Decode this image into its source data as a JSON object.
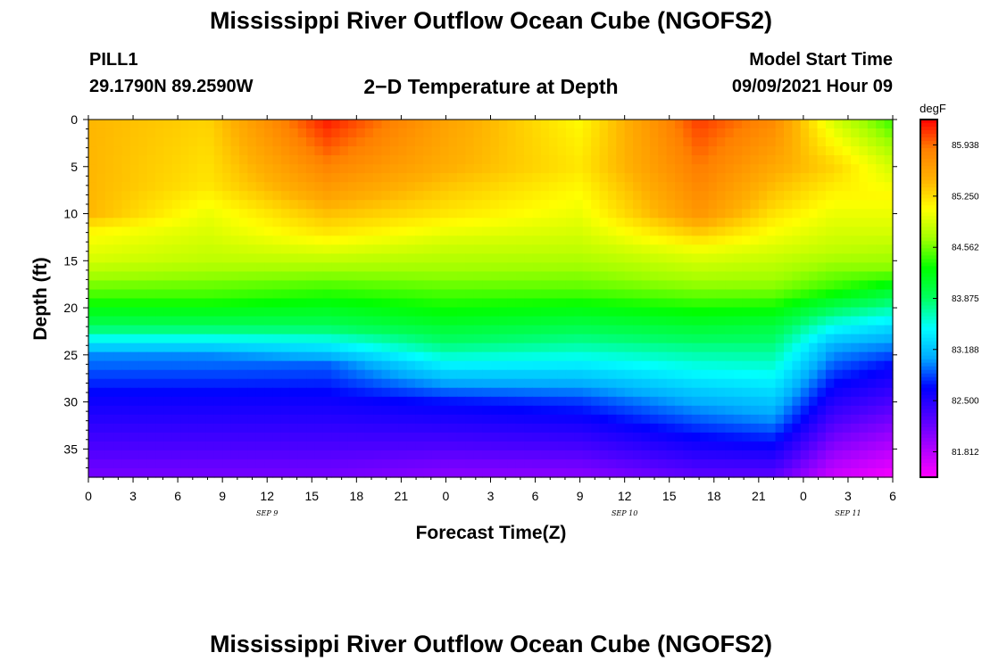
{
  "header": {
    "title": "Mississippi River Outflow Ocean Cube (NGOFS2)",
    "station": "PILL1",
    "coords": "29.1790N  89.2590W",
    "subtitle": "2−D Temperature at Depth",
    "start_label": "Model Start Time",
    "start_time": "09/09/2021 Hour 09"
  },
  "footer": {
    "title": "Mississippi River Outflow Ocean Cube (NGOFS2)"
  },
  "chart_data": {
    "type": "heatmap",
    "title": "2−D Temperature at Depth",
    "xlabel": "Forecast Time(Z)",
    "ylabel": "Depth (ft)",
    "x_ticks": [
      "0",
      "3",
      "6",
      "9",
      "12",
      "15",
      "18",
      "21",
      "0",
      "3",
      "6",
      "9",
      "12",
      "15",
      "18",
      "21",
      "0",
      "3",
      "6"
    ],
    "x_hours": [
      0,
      54
    ],
    "date_labels": [
      {
        "text": "SEP 9",
        "hour": 12
      },
      {
        "text": "SEP 10",
        "hour": 36
      },
      {
        "text": "SEP 11",
        "hour": 51
      }
    ],
    "y_ticks": [
      0,
      5,
      10,
      15,
      20,
      25,
      30,
      35
    ],
    "ylim": [
      0,
      38
    ],
    "colorbar": {
      "unit": "degF",
      "range": [
        81.47,
        86.28
      ],
      "ticks": [
        "85.938",
        "85.250",
        "84.562",
        "83.875",
        "83.188",
        "82.500",
        "81.812"
      ],
      "colors": [
        "#ff00ff",
        "#aa00ff",
        "#5000ff",
        "#0000ff",
        "#00aaff",
        "#00ffff",
        "#00ff60",
        "#00ff00",
        "#a0ff00",
        "#ffff00",
        "#ffb000",
        "#ff8000",
        "#ff0000"
      ]
    },
    "temperature_profiles": [
      {
        "hour": 0,
        "depths": [
          0,
          10,
          12,
          15,
          19,
          22,
          25,
          30,
          38
        ],
        "values": [
          85.45,
          85.45,
          85.1,
          84.9,
          84.4,
          83.9,
          83.0,
          82.6,
          82.1
        ]
      },
      {
        "hour": 8,
        "depths": [
          0,
          7,
          10,
          15,
          19,
          22,
          25,
          30,
          38
        ],
        "values": [
          85.3,
          85.2,
          85.0,
          84.8,
          84.4,
          83.9,
          83.0,
          82.6,
          82.1
        ]
      },
      {
        "hour": 16,
        "depths": [
          0,
          3,
          8,
          12,
          15,
          19,
          22,
          26,
          30,
          38
        ],
        "values": [
          86.2,
          86.0,
          85.6,
          85.2,
          84.8,
          84.3,
          83.9,
          82.9,
          82.6,
          82.1
        ]
      },
      {
        "hour": 24,
        "depths": [
          0,
          5,
          10,
          13,
          17,
          21,
          24,
          30,
          38
        ],
        "values": [
          85.6,
          85.5,
          85.2,
          84.9,
          84.6,
          84.2,
          83.8,
          82.7,
          82.0
        ]
      },
      {
        "hour": 33,
        "depths": [
          0,
          5,
          10,
          14,
          18,
          21,
          24,
          30,
          38
        ],
        "values": [
          85.1,
          85.2,
          85.0,
          84.8,
          84.5,
          84.1,
          83.7,
          82.8,
          82.0
        ]
      },
      {
        "hour": 41,
        "depths": [
          0,
          5,
          10,
          14,
          18,
          21,
          24,
          30,
          38
        ],
        "values": [
          86.1,
          85.9,
          85.7,
          85.0,
          84.6,
          84.2,
          83.8,
          83.1,
          82.2
        ]
      },
      {
        "hour": 46,
        "depths": [
          0,
          4,
          9,
          14,
          18,
          22,
          26,
          32,
          38
        ],
        "values": [
          85.8,
          85.6,
          85.3,
          84.9,
          84.6,
          84.0,
          83.6,
          83.0,
          82.2
        ]
      },
      {
        "hour": 50,
        "depths": [
          0,
          5,
          10,
          14,
          18,
          21,
          24,
          30,
          38
        ],
        "values": [
          84.9,
          85.3,
          85.0,
          84.8,
          84.4,
          83.7,
          83.1,
          82.5,
          81.7
        ]
      },
      {
        "hour": 54,
        "depths": [
          0,
          4,
          8,
          12,
          16,
          19,
          22,
          26,
          32,
          38
        ],
        "values": [
          84.4,
          84.8,
          85.1,
          84.9,
          84.6,
          83.9,
          83.3,
          82.7,
          82.1,
          81.5
        ]
      }
    ]
  }
}
